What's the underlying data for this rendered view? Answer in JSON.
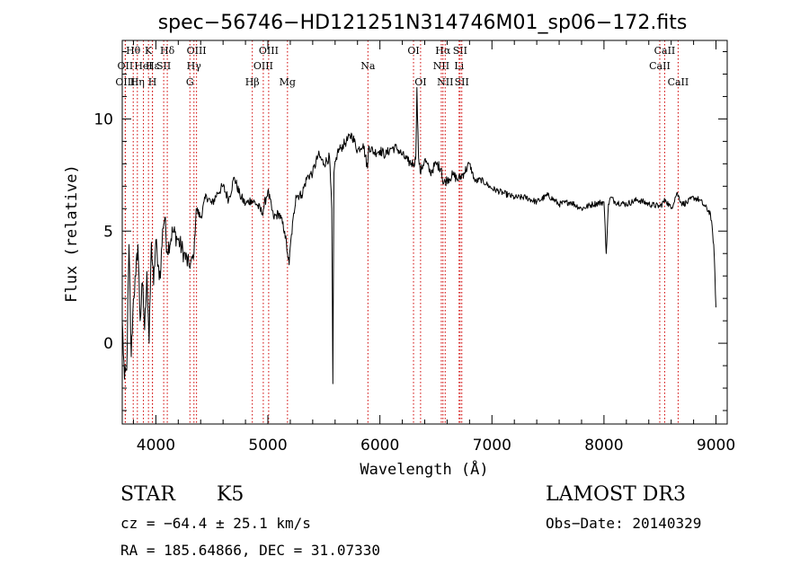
{
  "chart_data": {
    "type": "line",
    "title": "spec−56746−HD121251N314746M01_sp06−172.fits",
    "xlabel": "Wavelength (Å)",
    "ylabel": "Flux (relative)",
    "xlim": [
      3700,
      9100
    ],
    "ylim": [
      -3.6,
      13.5
    ],
    "xticks": [
      4000,
      5000,
      6000,
      7000,
      8000,
      9000
    ],
    "yticks": [
      0,
      5,
      10
    ],
    "series": [
      {
        "name": "flux",
        "color": "#000000",
        "x": [
          3700,
          3720,
          3740,
          3760,
          3780,
          3800,
          3820,
          3840,
          3860,
          3880,
          3900,
          3920,
          3940,
          3960,
          3980,
          4000,
          4020,
          4040,
          4060,
          4080,
          4100,
          4150,
          4200,
          4250,
          4300,
          4340,
          4360,
          4400,
          4450,
          4500,
          4550,
          4600,
          4650,
          4700,
          4750,
          4800,
          4850,
          4900,
          4950,
          5000,
          5050,
          5100,
          5150,
          5175,
          5190,
          5200,
          5250,
          5300,
          5350,
          5400,
          5450,
          5500,
          5550,
          5570,
          5580,
          5590,
          5620,
          5650,
          5700,
          5750,
          5800,
          5850,
          5890,
          5900,
          5950,
          6000,
          6050,
          6100,
          6150,
          6200,
          6250,
          6300,
          6320,
          6330,
          6345,
          6360,
          6400,
          6450,
          6500,
          6550,
          6563,
          6600,
          6650,
          6700,
          6750,
          6800,
          6850,
          6900,
          6950,
          7000,
          7100,
          7200,
          7300,
          7400,
          7500,
          7600,
          7700,
          7800,
          7900,
          8000,
          8020,
          8040,
          8060,
          8100,
          8200,
          8300,
          8400,
          8500,
          8550,
          8600,
          8650,
          8700,
          8750,
          8800,
          8850,
          8900,
          8950,
          8980,
          9000
        ],
        "y": [
          1.0,
          -1.6,
          -1.2,
          4.4,
          -0.6,
          2.0,
          3.0,
          4.4,
          1.0,
          2.7,
          0.6,
          3.2,
          0.0,
          4.5,
          2.6,
          4.6,
          3.5,
          2.9,
          5.1,
          5.6,
          4.1,
          5.0,
          4.6,
          4.0,
          3.4,
          4.0,
          6.0,
          5.6,
          6.6,
          6.2,
          6.7,
          7.0,
          6.4,
          7.4,
          6.6,
          6.2,
          6.4,
          6.2,
          5.8,
          6.8,
          5.6,
          5.8,
          5.0,
          4.0,
          3.5,
          4.3,
          6.6,
          6.6,
          7.4,
          7.6,
          8.4,
          8.0,
          8.3,
          6.0,
          -1.8,
          7.6,
          8.5,
          8.7,
          9.0,
          9.3,
          8.6,
          8.9,
          7.8,
          8.8,
          8.5,
          8.6,
          8.4,
          8.7,
          8.7,
          8.4,
          8.1,
          8.0,
          8.2,
          11.4,
          8.3,
          7.6,
          8.2,
          7.6,
          8.0,
          7.8,
          7.1,
          7.3,
          7.5,
          7.3,
          7.6,
          8.0,
          7.2,
          7.3,
          7.1,
          6.9,
          6.7,
          6.5,
          6.5,
          6.3,
          6.6,
          6.2,
          6.3,
          6.0,
          6.2,
          6.3,
          4.0,
          6.2,
          6.5,
          6.3,
          6.2,
          6.4,
          6.2,
          6.1,
          6.4,
          6.0,
          6.7,
          6.2,
          6.3,
          6.5,
          6.4,
          6.1,
          5.8,
          4.4,
          1.6
        ]
      }
    ],
    "lines": [
      {
        "label": "Hθ",
        "x": 3798,
        "row": 0
      },
      {
        "label": "OII",
        "x": 3727,
        "row": 1
      },
      {
        "label": "OIII",
        "x": 3727,
        "row": 2
      },
      {
        "label": "HeI",
        "x": 3889,
        "row": 1
      },
      {
        "label": "Hη",
        "x": 3835,
        "row": 2
      },
      {
        "label": "K",
        "x": 3934,
        "row": 0
      },
      {
        "label": "H",
        "x": 3969,
        "row": 2
      },
      {
        "label": "Hε",
        "x": 3970,
        "row": 1
      },
      {
        "label": "Hδ",
        "x": 4102,
        "row": 0
      },
      {
        "label": "SII",
        "x": 4070,
        "row": 1
      },
      {
        "label": "OIII",
        "x": 4363,
        "row": 0
      },
      {
        "label": "Hγ",
        "x": 4340,
        "row": 1
      },
      {
        "label": "G",
        "x": 4304,
        "row": 2
      },
      {
        "label": "Hβ",
        "x": 4861,
        "row": 2
      },
      {
        "label": "OIII",
        "x": 5007,
        "row": 0
      },
      {
        "label": "OIII",
        "x": 4959,
        "row": 1
      },
      {
        "label": "Mg",
        "x": 5175,
        "row": 2
      },
      {
        "label": "Na",
        "x": 5893,
        "row": 1
      },
      {
        "label": "OI",
        "x": 6300,
        "row": 0
      },
      {
        "label": "OI",
        "x": 6363,
        "row": 2
      },
      {
        "label": "Hα",
        "x": 6563,
        "row": 0
      },
      {
        "label": "NII",
        "x": 6548,
        "row": 1
      },
      {
        "label": "NII",
        "x": 6583,
        "row": 2
      },
      {
        "label": "SII",
        "x": 6716,
        "row": 0
      },
      {
        "label": "Li",
        "x": 6707,
        "row": 1
      },
      {
        "label": "SII",
        "x": 6731,
        "row": 2
      },
      {
        "label": "CaII",
        "x": 8542,
        "row": 0
      },
      {
        "label": "CaII",
        "x": 8498,
        "row": 1
      },
      {
        "label": "CaII",
        "x": 8662,
        "row": 2
      }
    ],
    "line_color": "#d00000"
  },
  "info": {
    "object_class": "STAR",
    "subclass": "K5",
    "survey": "LAMOST DR3",
    "cz": "cz = −64.4 ± 25.1 km/s",
    "obs_date": "Obs−Date: 20140329",
    "coords": "RA = 185.64866, DEC =  31.07330"
  }
}
